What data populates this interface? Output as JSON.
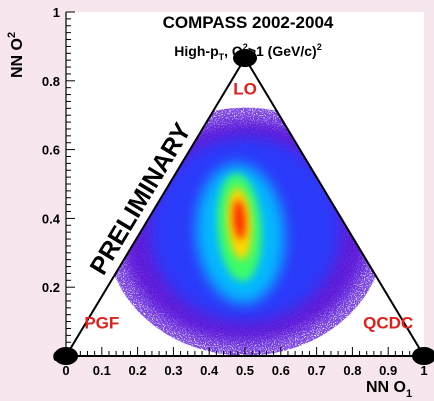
{
  "chart_data": {
    "type": "heatmap",
    "title_lines": [
      "COMPASS 2002-2004",
      "High-pT, Q²>1 (GeV/c)²"
    ],
    "title_line1": "COMPASS 2002-2004",
    "title_line2_parts": {
      "a": "High-p",
      "b": "T",
      "c": ", Q",
      "d": "2",
      "e": ">1 (GeV/c)",
      "f": "2"
    },
    "xlabel_parts": {
      "main": "NN O",
      "sub": "1"
    },
    "ylabel_parts": {
      "main": "NN O",
      "sub": "2"
    },
    "xlim": [
      0,
      1
    ],
    "ylim": [
      0,
      1
    ],
    "x_ticks": [
      "0",
      "0.1",
      "0.2",
      "0.3",
      "0.4",
      "0.5",
      "0.6",
      "0.7",
      "0.8",
      "0.9",
      "1"
    ],
    "y_ticks": [
      "0",
      "0.2",
      "0.4",
      "0.6",
      "0.8",
      "1"
    ],
    "x_tick_values": [
      0,
      0.1,
      0.2,
      0.3,
      0.4,
      0.5,
      0.6,
      0.7,
      0.8,
      0.9,
      1.0
    ],
    "y_tick_values": [
      0,
      0.2,
      0.4,
      0.6,
      0.8,
      1.0
    ],
    "triangle_vertices": [
      [
        0,
        0
      ],
      [
        1,
        0
      ],
      [
        0.5,
        0.866
      ]
    ],
    "vertex_labels": [
      {
        "text": "PGF",
        "x": 0.1,
        "y": 0.08
      },
      {
        "text": "QCDC",
        "x": 0.9,
        "y": 0.08
      },
      {
        "text": "LO",
        "x": 0.5,
        "y": 0.76
      }
    ],
    "annotation": "PRELIMINARY",
    "density_peak": {
      "x": 0.49,
      "y": 0.35
    },
    "grid": false,
    "colors": {
      "triangle": "#000000",
      "labels": "#e0201c",
      "hot": "#ff2a00",
      "warm": "#ffd700",
      "mid": "#40ff60",
      "cool": "#00c8ff",
      "cold": "#2040ff",
      "base": "#5a18d8",
      "frame_bg": "#ffffff",
      "page_bg": "#f7e6ee"
    }
  }
}
